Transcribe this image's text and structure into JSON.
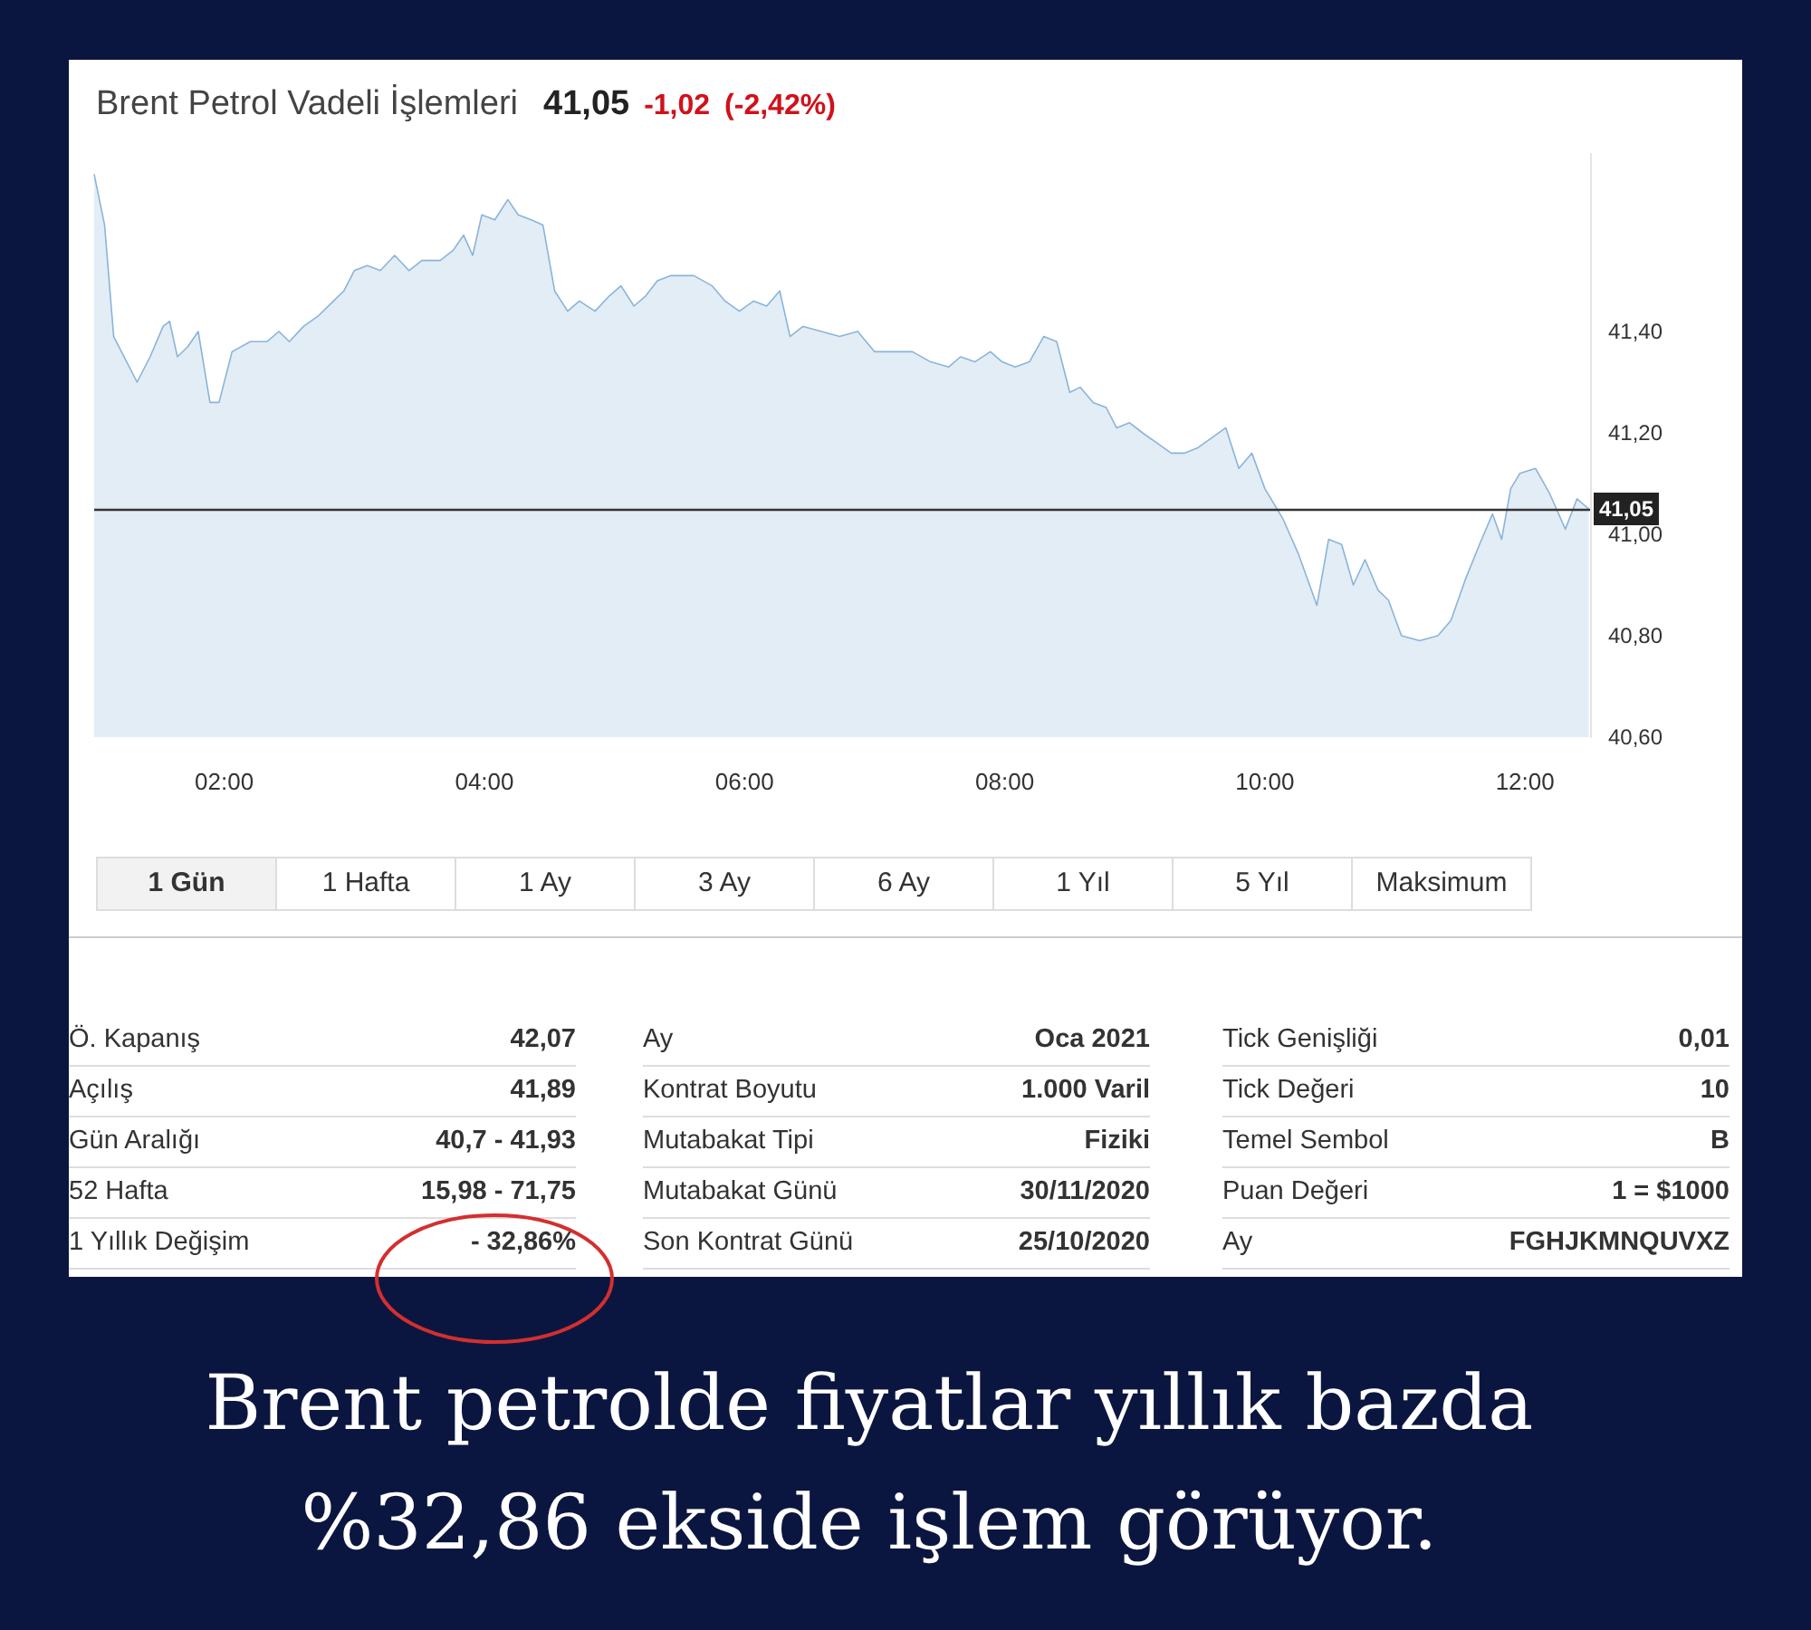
{
  "chart_data": {
    "type": "area",
    "title": "Brent Petrol Vadeli İşlemleri",
    "subtitle": "41,05 -1,02 (-2,42%)",
    "x": [
      1.0,
      1.08,
      1.15,
      1.25,
      1.33,
      1.43,
      1.53,
      1.58,
      1.64,
      1.72,
      1.8,
      1.89,
      1.96,
      2.06,
      2.2,
      2.33,
      2.42,
      2.5,
      2.61,
      2.72,
      2.84,
      2.92,
      3.0,
      3.1,
      3.2,
      3.31,
      3.42,
      3.52,
      3.66,
      3.76,
      3.84,
      3.91,
      3.98,
      4.08,
      4.18,
      4.26,
      4.36,
      4.45,
      4.54,
      4.64,
      4.73,
      4.85,
      4.96,
      5.05,
      5.15,
      5.24,
      5.33,
      5.43,
      5.61,
      5.75,
      5.85,
      5.96,
      6.07,
      6.17,
      6.27,
      6.35,
      6.45,
      6.59,
      6.73,
      6.87,
      7.0,
      7.15,
      7.29,
      7.43,
      7.57,
      7.66,
      7.77,
      7.89,
      7.98,
      8.08,
      8.19,
      8.3,
      8.4,
      8.5,
      8.58,
      8.68,
      8.78,
      8.86,
      8.96,
      9.06,
      9.17,
      9.28,
      9.38,
      9.48,
      9.59,
      9.7,
      9.8,
      9.9,
      10.0,
      10.14,
      10.26,
      10.4,
      10.49,
      10.59,
      10.68,
      10.77,
      10.87,
      10.95,
      11.05,
      11.19,
      11.33,
      11.43,
      11.54,
      11.65,
      11.75,
      11.82,
      11.89,
      11.96,
      12.08,
      12.19,
      12.31,
      12.4,
      12.49
    ],
    "series": [
      {
        "color": "#8ab4d9",
        "values": [
          41.71,
          41.61,
          41.39,
          41.34,
          41.3,
          41.35,
          41.41,
          41.42,
          41.35,
          41.37,
          41.4,
          41.26,
          41.26,
          41.36,
          41.38,
          41.38,
          41.4,
          41.38,
          41.41,
          41.43,
          41.46,
          41.48,
          41.52,
          41.53,
          41.52,
          41.55,
          41.52,
          41.54,
          41.54,
          41.56,
          41.59,
          41.55,
          41.63,
          41.62,
          41.66,
          41.63,
          41.62,
          41.61,
          41.48,
          41.44,
          41.46,
          41.44,
          41.47,
          41.49,
          41.45,
          41.47,
          41.5,
          41.51,
          41.51,
          41.49,
          41.46,
          41.44,
          41.46,
          41.45,
          41.48,
          41.39,
          41.41,
          41.4,
          41.39,
          41.4,
          41.36,
          41.36,
          41.36,
          41.34,
          41.33,
          41.35,
          41.34,
          41.36,
          41.34,
          41.33,
          41.34,
          41.39,
          41.38,
          41.28,
          41.29,
          41.26,
          41.25,
          41.21,
          41.22,
          41.2,
          41.18,
          41.16,
          41.16,
          41.17,
          41.19,
          41.21,
          41.13,
          41.16,
          41.09,
          41.03,
          40.96,
          40.86,
          40.99,
          40.98,
          40.9,
          40.95,
          40.89,
          40.87,
          40.8,
          40.79,
          40.8,
          40.83,
          40.91,
          40.98,
          41.04,
          40.99,
          41.09,
          41.12,
          41.13,
          41.08,
          41.01,
          41.07,
          41.05
        ]
      }
    ],
    "xlim": [
      1,
      12.5
    ],
    "xticks": [
      {
        "value": 2,
        "label": "02:00"
      },
      {
        "value": 4,
        "label": "04:00"
      },
      {
        "value": 6,
        "label": "06:00"
      },
      {
        "value": 8,
        "label": "08:00"
      },
      {
        "value": 10,
        "label": "10:00"
      },
      {
        "value": 12,
        "label": "12:00"
      }
    ],
    "ylim": [
      40.6,
      41.75
    ],
    "yticks": [
      {
        "value": 40.6,
        "label": "40,60"
      },
      {
        "value": 40.8,
        "label": "40,80"
      },
      {
        "value": 41,
        "label": "41,00"
      },
      {
        "value": 41.2,
        "label": "41,20"
      },
      {
        "value": 41.4,
        "label": "41,40"
      }
    ],
    "ref_lines": [
      {
        "axis": "y",
        "value": 41.05,
        "label": "41,05",
        "color": "#333333"
      }
    ],
    "grid": false,
    "marker": "none",
    "annotations": [
      "1 Gün",
      "1 Hafta",
      "1 Ay",
      "3 Ay",
      "6 Ay",
      "1 Yıl",
      "5 Yıl",
      "Maksimum",
      "Ö. Kapanış",
      "42,07",
      "Ay",
      "Oca 2021",
      "Tick Genişliği",
      "0,01",
      "Açılış",
      "41,89",
      "Kontrat Boyutu",
      "1.000 Varil",
      "Tick Değeri",
      "10",
      "Gün Aralığı",
      "40,7 - 41,93",
      "Mutabakat Tipi",
      "Fiziki",
      "Temel Sembol",
      "B",
      "52 Hafta",
      "15,98 - 71,75",
      "Mutabakat Günü",
      "30/11/2020",
      "Puan Değeri",
      "1 = $1000",
      "1 Yıllık Değişim",
      "- 32,86%",
      "Son Kontrat Günü",
      "25/10/2020",
      "Ay",
      "FGHJKMNQUVXZ",
      "Brent petrolde fiyatlar yıllık bazda %32,86 ekside işlem görüyor."
    ]
  }
}
